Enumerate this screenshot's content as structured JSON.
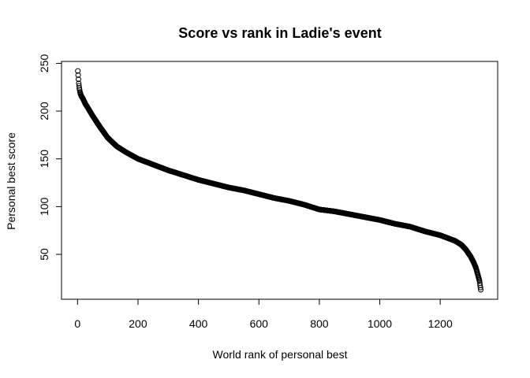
{
  "chart_data": {
    "type": "scatter",
    "title": "Score vs rank in Ladie's event",
    "xlabel": "World rank of personal best",
    "ylabel": "Personal best score",
    "xlim": [
      -53,
      1390
    ],
    "ylim": [
      3,
      252
    ],
    "xticks": [
      0,
      200,
      400,
      600,
      800,
      1000,
      1200
    ],
    "yticks": [
      50,
      100,
      150,
      200,
      250
    ],
    "grid": false,
    "point_marker": "open-circle",
    "n_points": 1334,
    "curve_knots": [
      [
        1,
        242
      ],
      [
        4,
        229
      ],
      [
        6,
        224
      ],
      [
        8,
        220
      ],
      [
        12,
        216
      ],
      [
        18,
        213
      ],
      [
        25,
        208
      ],
      [
        35,
        203
      ],
      [
        50,
        195
      ],
      [
        75,
        183
      ],
      [
        100,
        172
      ],
      [
        130,
        163
      ],
      [
        160,
        157
      ],
      [
        200,
        150
      ],
      [
        250,
        144
      ],
      [
        300,
        138
      ],
      [
        350,
        133
      ],
      [
        400,
        128
      ],
      [
        450,
        124
      ],
      [
        500,
        120
      ],
      [
        550,
        117
      ],
      [
        600,
        113
      ],
      [
        650,
        109
      ],
      [
        700,
        106
      ],
      [
        750,
        102
      ],
      [
        800,
        97
      ],
      [
        850,
        95
      ],
      [
        900,
        92
      ],
      [
        950,
        89
      ],
      [
        1000,
        86
      ],
      [
        1050,
        82
      ],
      [
        1100,
        79
      ],
      [
        1150,
        74
      ],
      [
        1200,
        70
      ],
      [
        1250,
        64
      ],
      [
        1270,
        60
      ],
      [
        1285,
        55
      ],
      [
        1300,
        48
      ],
      [
        1310,
        42
      ],
      [
        1318,
        36
      ],
      [
        1325,
        28
      ],
      [
        1330,
        22
      ],
      [
        1334,
        13
      ]
    ]
  }
}
